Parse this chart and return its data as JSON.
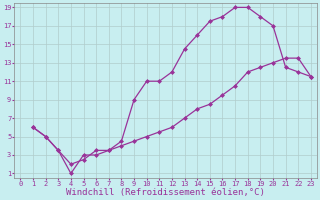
{
  "xlabel": "Windchill (Refroidissement éolien,°C)",
  "bg_color": "#c8eef0",
  "grid_color": "#b0cccc",
  "line_color": "#993399",
  "xlim": [
    -0.5,
    23.5
  ],
  "ylim": [
    0.5,
    19.5
  ],
  "xticks": [
    0,
    1,
    2,
    3,
    4,
    5,
    6,
    7,
    8,
    9,
    10,
    11,
    12,
    13,
    14,
    15,
    16,
    17,
    18,
    19,
    20,
    21,
    22,
    23
  ],
  "yticks": [
    1,
    3,
    5,
    7,
    9,
    11,
    13,
    15,
    17,
    19
  ],
  "line1_x": [
    1,
    2,
    3,
    4,
    5,
    6,
    7,
    8,
    9,
    10,
    11,
    12,
    13,
    14,
    15,
    16,
    17,
    18,
    19,
    20,
    21,
    22,
    23
  ],
  "line1_y": [
    6,
    5,
    3.5,
    2,
    2.5,
    3.5,
    3.5,
    4.5,
    9,
    11,
    11,
    12,
    14.5,
    16,
    17.5,
    18,
    19,
    19,
    18,
    17,
    12.5,
    12,
    11.5
  ],
  "line2_x": [
    1,
    2,
    3,
    4,
    5,
    6,
    7,
    8,
    9,
    10,
    11,
    12,
    13,
    14,
    15,
    16,
    17,
    18,
    19,
    20,
    21,
    22,
    23
  ],
  "line2_y": [
    6,
    5,
    3.5,
    1,
    3,
    3,
    3.5,
    4,
    4.5,
    5,
    5.5,
    6,
    7,
    8,
    8.5,
    9.5,
    10.5,
    12,
    12.5,
    13,
    13.5,
    13.5,
    11.5
  ],
  "marker": "D",
  "markersize": 2,
  "linewidth": 0.9,
  "tick_fontsize": 5,
  "xlabel_fontsize": 6.5
}
